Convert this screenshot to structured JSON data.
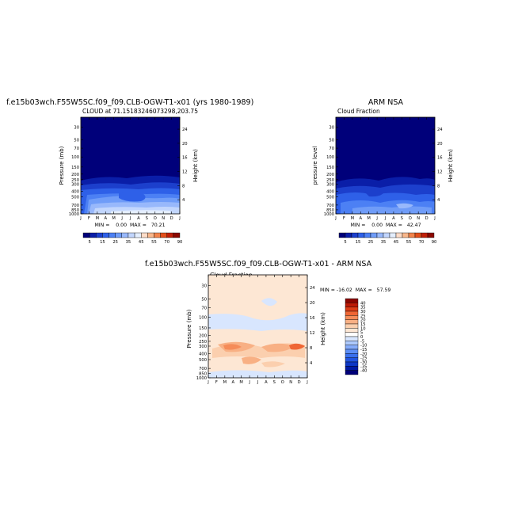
{
  "page": {
    "main_title_top": "f.e15b03wch.F55W5SC.f09_f09.CLB-OGW-T1-x01 (yrs 1980-1989)",
    "right_title_top": "ARM NSA",
    "main_title_bottom": "f.e15b03wch.F55W5SC.f09_f09.CLB-OGW-T1-x01 - ARM NSA"
  },
  "chart_data": [
    {
      "type": "heatmap",
      "subtitle": "CLOUD at 71.15183246073298,203.75",
      "ylabel": "Pressure (mb)",
      "ylabel_right": "Height (km)",
      "x_ticks": [
        "J",
        "F",
        "M",
        "A",
        "M",
        "J",
        "J",
        "A",
        "S",
        "O",
        "N",
        "D",
        "J"
      ],
      "y_ticks": [
        "30",
        "50",
        "70",
        "100",
        "150",
        "200",
        "250",
        "300",
        "400",
        "500",
        "700",
        "850",
        "1000"
      ],
      "y_ticks_right": [
        "24",
        "20",
        "16",
        "12",
        "8",
        "4"
      ],
      "y_scale": "log",
      "min_max_text": "MIN =    0.00  MAX =   70.21",
      "colorbar": {
        "orientation": "horizontal",
        "labels": [
          "5",
          "15",
          "25",
          "35",
          "45",
          "55",
          "70",
          "90"
        ],
        "levels": [
          5,
          10,
          15,
          20,
          25,
          30,
          35,
          40,
          45,
          50,
          55,
          60,
          70,
          80,
          90
        ]
      }
    },
    {
      "type": "heatmap",
      "subtitle": "Cloud Fraction",
      "ylabel": "pressure level",
      "ylabel_right": "Height (km)",
      "x_ticks": [
        "J",
        "F",
        "M",
        "A",
        "M",
        "J",
        "J",
        "A",
        "S",
        "O",
        "N",
        "D",
        "J"
      ],
      "y_ticks": [
        "30",
        "50",
        "70",
        "100",
        "150",
        "200",
        "250",
        "300",
        "400",
        "500",
        "700",
        "850",
        "1000"
      ],
      "y_ticks_right": [
        "24",
        "20",
        "16",
        "12",
        "8",
        "4"
      ],
      "y_scale": "log",
      "min_max_text": "MIN =    0.00  MAX =   42.47",
      "colorbar": {
        "orientation": "horizontal",
        "labels": [
          "5",
          "15",
          "25",
          "35",
          "45",
          "55",
          "70",
          "90"
        ],
        "levels": [
          5,
          10,
          15,
          20,
          25,
          30,
          35,
          40,
          45,
          50,
          55,
          60,
          70,
          80,
          90
        ]
      }
    },
    {
      "type": "heatmap",
      "subtitle": "Cloud Fraction",
      "ylabel": "Pressure (mb)",
      "ylabel_right": "Height (km)",
      "x_ticks": [
        "J",
        "F",
        "M",
        "A",
        "M",
        "J",
        "J",
        "A",
        "S",
        "O",
        "N",
        "D",
        "J"
      ],
      "y_ticks": [
        "30",
        "50",
        "70",
        "100",
        "150",
        "200",
        "250",
        "300",
        "400",
        "500",
        "700",
        "850",
        "1000"
      ],
      "y_ticks_right": [
        "24",
        "20",
        "16",
        "12",
        "8",
        "4"
      ],
      "y_scale": "log",
      "min_max_text": "MIN = -16.02  MAX =   57.59",
      "colorbar": {
        "orientation": "vertical",
        "labels": [
          "40",
          "35",
          "30",
          "25",
          "20",
          "15",
          "10",
          "5",
          "0",
          "-5",
          "-10",
          "-15",
          "-20",
          "-25",
          "-30",
          "-35",
          "-40"
        ]
      }
    }
  ],
  "colors": {
    "seq": [
      "#00007a",
      "#0a1ea8",
      "#1c3fcc",
      "#2e60e8",
      "#4c80f4",
      "#6f9cf8",
      "#98b8fb",
      "#c2d6fd",
      "#e4eefe",
      "#fcdcc8",
      "#f8b78c",
      "#f2844c",
      "#e24f1c",
      "#c02008",
      "#8c0800"
    ],
    "diff": [
      "#00007a",
      "#001aa4",
      "#0d37c6",
      "#2154e0",
      "#3a70ee",
      "#5c8ef6",
      "#85acfb",
      "#aecafd",
      "#d8e6fe",
      "#ffffff",
      "#fde7d4",
      "#fbcfae",
      "#f8b084",
      "#f58c59",
      "#ef6634",
      "#dd3d16",
      "#bd1a06",
      "#8b0500"
    ]
  }
}
